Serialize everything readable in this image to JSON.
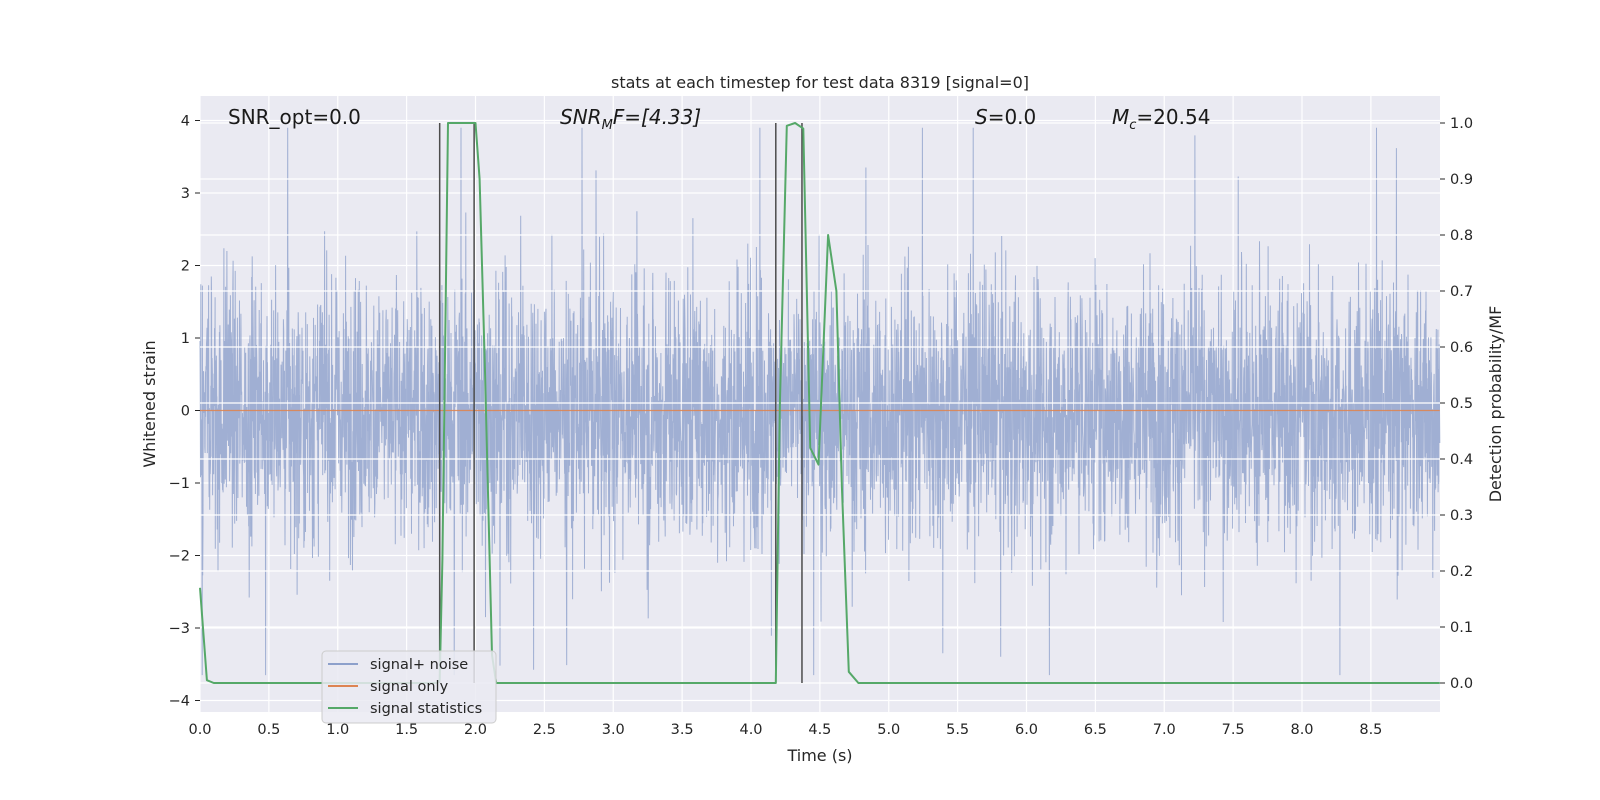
{
  "chart_data": {
    "type": "line",
    "title": "stats at each timestep for test data 8319 [signal=0]",
    "xlabel": "Time (s)",
    "ylabel": "Whitened strain",
    "y2label": "Detection probability/MF",
    "xlim": [
      0,
      9
    ],
    "ylim": [
      -4.0,
      4.4
    ],
    "y2lim": [
      -0.045,
      1.045
    ],
    "grid": true,
    "legend_position": "lower-left",
    "x_ticks": [
      "0.0",
      "0.5",
      "1.0",
      "1.5",
      "2.0",
      "2.5",
      "3.0",
      "3.5",
      "4.0",
      "4.5",
      "5.0",
      "5.5",
      "6.0",
      "6.5",
      "7.0",
      "7.5",
      "8.0",
      "8.5"
    ],
    "y_ticks": [
      "4",
      "3",
      "2",
      "1",
      "0",
      "−1",
      "−2",
      "−3",
      "−4"
    ],
    "y2_ticks": [
      "1.0",
      "0.9",
      "0.8",
      "0.7",
      "0.6",
      "0.5",
      "0.4",
      "0.3",
      "0.2",
      "0.1",
      "0.0"
    ],
    "annotations": {
      "snr_opt": "SNR_opt=0.0",
      "snr_mf_main": "SNR",
      "snr_mf_sub": "M",
      "snr_mf_rest": "F=[4.33]",
      "s_main": "S",
      "s_rest": "=0.0",
      "mc_main": "M",
      "mc_sub": "c",
      "mc_rest": "=20.54"
    },
    "series": [
      {
        "name": "signal+ noise",
        "color": "#8da0cb",
        "kind": "noise",
        "sample_rate": 512,
        "envelope_upper": 2.4,
        "envelope_lower": -2.4,
        "peak_max": 3.9,
        "peak_min": -3.65
      },
      {
        "name": "signal only",
        "color": "#dd8452",
        "x": [
          0,
          9
        ],
        "y": [
          0,
          0
        ]
      },
      {
        "name": "signal statistics",
        "color": "#55a868",
        "axis": "right",
        "x": [
          0.0,
          0.05,
          0.1,
          1.72,
          1.74,
          1.76,
          1.8,
          1.85,
          1.9,
          1.95,
          2.0,
          2.03,
          2.07,
          2.12,
          2.15,
          2.2,
          4.18,
          4.21,
          4.26,
          4.32,
          4.38,
          4.43,
          4.49,
          4.56,
          4.62,
          4.66,
          4.71,
          4.78,
          4.9,
          5.1,
          5.2,
          9.0
        ],
        "y": [
          0.17,
          0.005,
          0.0,
          0.0,
          0.005,
          0.22,
          1.0,
          1.0,
          1.0,
          1.0,
          1.0,
          0.9,
          0.55,
          0.05,
          0.0,
          0.0,
          0.0,
          0.5,
          0.995,
          1.0,
          0.99,
          0.42,
          0.39,
          0.8,
          0.7,
          0.35,
          0.02,
          0.0,
          0.0,
          0.0,
          0.0,
          0.0
        ]
      }
    ],
    "vertical_lines": [
      1.74,
      1.99,
      4.18,
      4.37
    ]
  }
}
